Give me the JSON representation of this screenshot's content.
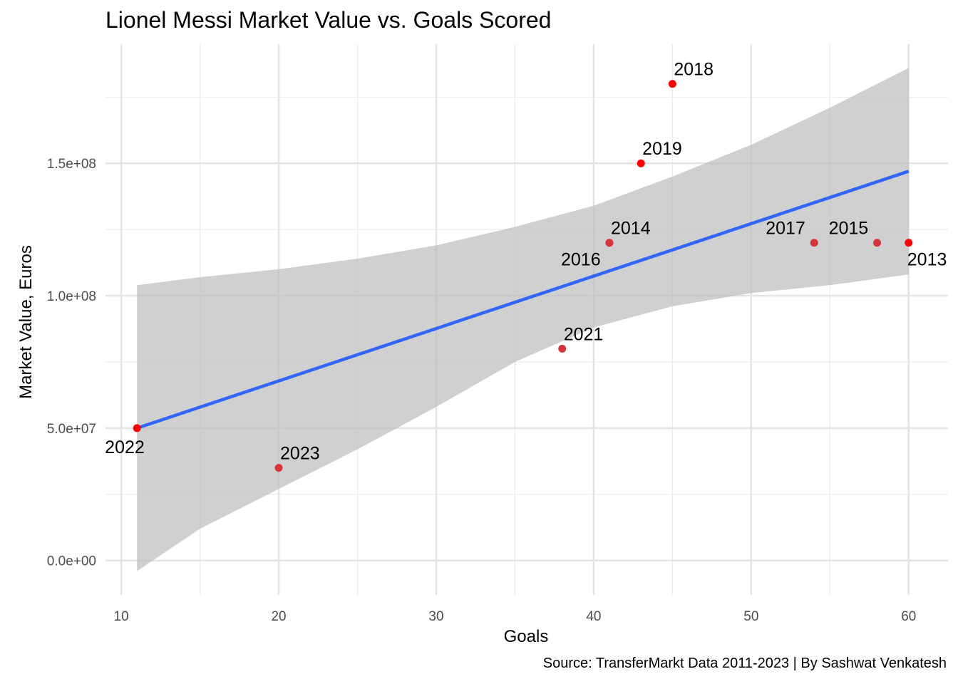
{
  "chart_data": {
    "type": "scatter",
    "title": "Lionel Messi Market Value vs. Goals Scored",
    "caption": "Source: TransferMarkt Data 2011-2023 | By Sashwat Venkatesh",
    "xlabel": "Goals",
    "ylabel": "Market Value, Euros",
    "xlim": [
      9,
      62.5
    ],
    "ylim": [
      -13000000,
      195000000
    ],
    "x_ticks": [
      10,
      20,
      30,
      40,
      50,
      60
    ],
    "x_tick_labels": [
      "10",
      "20",
      "30",
      "40",
      "50",
      "60"
    ],
    "y_ticks": [
      0,
      50000000,
      100000000,
      150000000
    ],
    "y_tick_labels": [
      "0.0e+00",
      "5.0e+07",
      "1.0e+08",
      "1.5e+08"
    ],
    "grid": true,
    "points": [
      {
        "label": "2013",
        "x": 60,
        "y": 120000000,
        "color": "#ff0000"
      },
      {
        "label": "2014",
        "x": 41,
        "y": 120000000,
        "color": "#d5363e"
      },
      {
        "label": "2015",
        "x": 58,
        "y": 120000000,
        "color": "#d5363e"
      },
      {
        "label": "2016",
        "x": 41,
        "y": 120000000,
        "color": "#d5363e"
      },
      {
        "label": "2017",
        "x": 54,
        "y": 120000000,
        "color": "#d5363e"
      },
      {
        "label": "2018",
        "x": 45,
        "y": 180000000,
        "color": "#ff0000"
      },
      {
        "label": "2019",
        "x": 43,
        "y": 150000000,
        "color": "#ff0000"
      },
      {
        "label": "2021",
        "x": 38,
        "y": 80000000,
        "color": "#d5363e"
      },
      {
        "label": "2022",
        "x": 11,
        "y": 50000000,
        "color": "#ff0000"
      },
      {
        "label": "2023",
        "x": 20,
        "y": 35000000,
        "color": "#d5363e"
      }
    ],
    "trend_line": {
      "color": "#3366ff",
      "x": [
        11,
        60
      ],
      "y": [
        50000000,
        147000000
      ]
    },
    "confidence_band": {
      "color": "#bebebe",
      "x": [
        11,
        15,
        20,
        25,
        30,
        35,
        40,
        45,
        50,
        55,
        60
      ],
      "lower": [
        -4000000,
        12000000,
        27000000,
        42000000,
        58000000,
        75000000,
        88000000,
        96000000,
        101000000,
        104000000,
        108000000
      ],
      "upper": [
        104000000,
        107000000,
        110000000,
        114000000,
        119000000,
        126000000,
        134000000,
        145000000,
        157000000,
        171000000,
        186000000
      ]
    }
  }
}
